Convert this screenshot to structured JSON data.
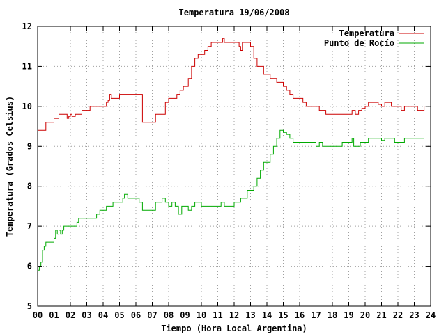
{
  "chart_data": {
    "type": "line",
    "title": "Temperatura 19/06/2008",
    "xlabel": "Tiempo (Hora Local Argentina)",
    "ylabel": "Temperatura (Grados Celsius)",
    "xlim": [
      0,
      24
    ],
    "ylim": [
      5,
      12
    ],
    "xticks": [
      "00",
      "01",
      "02",
      "03",
      "04",
      "05",
      "06",
      "07",
      "08",
      "09",
      "10",
      "11",
      "12",
      "13",
      "14",
      "15",
      "16",
      "17",
      "18",
      "19",
      "20",
      "21",
      "22",
      "23",
      "24"
    ],
    "yticks": [
      "5",
      "6",
      "7",
      "8",
      "9",
      "10",
      "11",
      "12"
    ],
    "grid": true,
    "legend_position": "top-right",
    "series": [
      {
        "name": "Temperatura",
        "color": "#cc0000",
        "x": [
          0,
          0.4,
          0.5,
          1.0,
          1.1,
          1.3,
          1.4,
          1.8,
          1.9,
          2.0,
          2.1,
          2.3,
          2.5,
          2.7,
          2.9,
          3.2,
          3.6,
          4.0,
          4.2,
          4.3,
          4.4,
          4.5,
          4.9,
          5.0,
          5.2,
          5.6,
          6.0,
          6.2,
          6.4,
          6.6,
          6.8,
          7.0,
          7.2,
          7.5,
          7.8,
          8.0,
          8.2,
          8.5,
          8.7,
          8.9,
          9.0,
          9.2,
          9.4,
          9.6,
          9.8,
          10.0,
          10.2,
          10.4,
          10.6,
          10.8,
          11.0,
          11.3,
          11.4,
          11.6,
          11.8,
          12.0,
          12.2,
          12.3,
          12.4,
          12.5,
          12.9,
          13.0,
          13.2,
          13.4,
          13.8,
          14.0,
          14.2,
          14.4,
          14.6,
          14.8,
          15.0,
          15.2,
          15.4,
          15.6,
          15.8,
          16.0,
          16.2,
          16.4,
          16.8,
          17.0,
          17.2,
          17.6,
          18.0,
          18.4,
          18.8,
          19.0,
          19.2,
          19.4,
          19.6,
          19.8,
          20.0,
          20.2,
          20.4,
          20.6,
          20.8,
          21.0,
          21.2,
          21.4,
          21.6,
          21.8,
          22.0,
          22.2,
          22.4,
          22.6,
          22.8,
          23.0,
          23.2,
          23.4,
          23.6
        ],
        "y": [
          9.4,
          9.4,
          9.6,
          9.7,
          9.7,
          9.8,
          9.8,
          9.7,
          9.75,
          9.8,
          9.75,
          9.8,
          9.8,
          9.9,
          9.9,
          10.0,
          10.0,
          10.0,
          10.1,
          10.15,
          10.3,
          10.2,
          10.2,
          10.3,
          10.3,
          10.3,
          10.3,
          10.3,
          9.6,
          9.6,
          9.6,
          9.6,
          9.8,
          9.8,
          10.1,
          10.2,
          10.2,
          10.3,
          10.4,
          10.5,
          10.5,
          10.7,
          11.0,
          11.2,
          11.3,
          11.3,
          11.4,
          11.5,
          11.6,
          11.6,
          11.6,
          11.7,
          11.6,
          11.6,
          11.6,
          11.6,
          11.6,
          11.5,
          11.4,
          11.6,
          11.6,
          11.5,
          11.2,
          11.0,
          10.8,
          10.8,
          10.7,
          10.7,
          10.6,
          10.6,
          10.5,
          10.4,
          10.3,
          10.2,
          10.2,
          10.2,
          10.1,
          10.0,
          10.0,
          10.0,
          9.9,
          9.8,
          9.8,
          9.8,
          9.8,
          9.8,
          9.9,
          9.8,
          9.9,
          9.95,
          10.0,
          10.1,
          10.1,
          10.1,
          10.05,
          10.0,
          10.1,
          10.1,
          10.0,
          10.0,
          10.0,
          9.9,
          10.0,
          10.0,
          10.0,
          10.0,
          9.9,
          9.9,
          10.0
        ]
      },
      {
        "name": "Punto de Rocío",
        "color": "#00aa00",
        "x": [
          0,
          0.1,
          0.2,
          0.3,
          0.4,
          0.5,
          0.6,
          0.8,
          1.0,
          1.1,
          1.2,
          1.3,
          1.4,
          1.5,
          1.6,
          2.0,
          2.2,
          2.4,
          2.5,
          2.7,
          3.0,
          3.4,
          3.6,
          3.8,
          4.0,
          4.2,
          4.4,
          4.6,
          4.8,
          5.0,
          5.2,
          5.3,
          5.5,
          5.8,
          6.0,
          6.2,
          6.4,
          6.8,
          7.0,
          7.2,
          7.4,
          7.6,
          7.8,
          8.0,
          8.2,
          8.4,
          8.6,
          8.8,
          9.0,
          9.2,
          9.4,
          9.6,
          9.8,
          10.0,
          10.4,
          10.8,
          11.0,
          11.2,
          11.4,
          11.8,
          12.0,
          12.2,
          12.4,
          12.8,
          13.0,
          13.2,
          13.4,
          13.6,
          13.8,
          14.0,
          14.2,
          14.4,
          14.6,
          14.8,
          15.0,
          15.2,
          15.4,
          15.6,
          15.8,
          16.0,
          16.4,
          16.8,
          17.0,
          17.2,
          17.4,
          17.6,
          18.0,
          18.4,
          18.6,
          18.8,
          19.0,
          19.2,
          19.3,
          19.5,
          19.7,
          20.0,
          20.2,
          20.6,
          21.0,
          21.2,
          21.6,
          21.8,
          22.0,
          22.4,
          22.6,
          23.0,
          23.4,
          23.6
        ],
        "y": [
          5.9,
          6.0,
          6.1,
          6.4,
          6.5,
          6.6,
          6.6,
          6.6,
          6.7,
          6.9,
          6.8,
          6.9,
          6.8,
          6.9,
          7.0,
          7.0,
          7.0,
          7.1,
          7.2,
          7.2,
          7.2,
          7.2,
          7.3,
          7.4,
          7.4,
          7.5,
          7.5,
          7.6,
          7.6,
          7.6,
          7.7,
          7.8,
          7.7,
          7.7,
          7.7,
          7.6,
          7.4,
          7.4,
          7.4,
          7.6,
          7.6,
          7.7,
          7.6,
          7.5,
          7.6,
          7.5,
          7.3,
          7.5,
          7.5,
          7.4,
          7.5,
          7.6,
          7.6,
          7.5,
          7.5,
          7.5,
          7.5,
          7.6,
          7.5,
          7.5,
          7.6,
          7.6,
          7.7,
          7.9,
          7.9,
          8.0,
          8.2,
          8.4,
          8.6,
          8.6,
          8.8,
          9.0,
          9.2,
          9.4,
          9.35,
          9.3,
          9.2,
          9.1,
          9.1,
          9.1,
          9.1,
          9.1,
          9.0,
          9.1,
          9.0,
          9.0,
          9.0,
          9.0,
          9.1,
          9.1,
          9.1,
          9.2,
          9.0,
          9.0,
          9.1,
          9.1,
          9.2,
          9.2,
          9.15,
          9.2,
          9.2,
          9.1,
          9.1,
          9.2,
          9.2,
          9.2,
          9.2,
          9.2
        ]
      }
    ]
  }
}
